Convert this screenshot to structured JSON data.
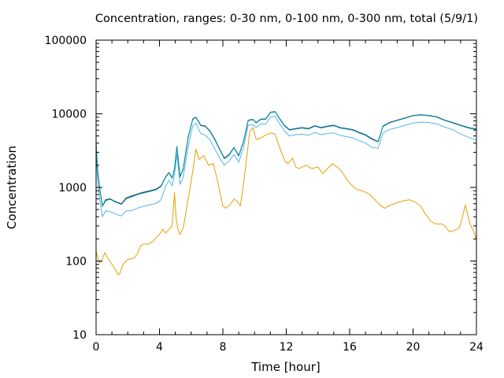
{
  "chart_data": {
    "type": "line",
    "title": "Concentration, ranges: 0-30 nm, 0-100 nm, 0-300 nm, total (5/9/1)",
    "xlabel": "Time [hour]",
    "ylabel": "Concentration",
    "xlim": [
      0,
      24
    ],
    "ylim": [
      10,
      100000
    ],
    "yscale": "log",
    "grid": false,
    "legend": "none",
    "x_ticks": [
      "0",
      "4",
      "8",
      "12",
      "16",
      "20",
      "24"
    ],
    "y_ticks": [
      "10",
      "100",
      "1000",
      "10000",
      "100000"
    ],
    "series": [
      {
        "color": "#e69f00",
        "x": [
          0,
          0.2,
          0.35,
          0.55,
          0.8,
          1.0,
          1.2,
          1.4,
          1.5,
          1.7,
          2.0,
          2.4,
          2.6,
          2.8,
          3.0,
          3.3,
          3.6,
          3.8,
          4.0,
          4.2,
          4.4,
          4.6,
          4.8,
          4.95,
          5.05,
          5.15,
          5.3,
          5.5,
          5.7,
          6.0,
          6.3,
          6.5,
          6.8,
          7.1,
          7.4,
          7.6,
          7.8,
          8.0,
          8.2,
          8.5,
          8.7,
          8.9,
          9.1,
          9.3,
          9.5,
          9.7,
          9.9,
          10.1,
          10.3,
          10.6,
          11.0,
          11.3,
          11.6,
          11.9,
          12.1,
          12.4,
          12.6,
          12.8,
          13.0,
          13.3,
          13.6,
          14.0,
          14.3,
          14.6,
          14.9,
          15.2,
          15.5,
          15.8,
          16.0,
          16.4,
          16.8,
          17.2,
          17.6,
          17.9,
          18.2,
          18.6,
          19.0,
          19.4,
          19.8,
          20.2,
          20.5,
          20.8,
          21.1,
          21.4,
          21.8,
          22.0,
          22.3,
          22.6,
          22.9,
          23.1,
          23.3,
          23.6,
          23.9,
          24.0
        ],
        "values": [
          135,
          95,
          100,
          130,
          105,
          90,
          78,
          65,
          68,
          90,
          105,
          110,
          125,
          160,
          170,
          170,
          185,
          210,
          230,
          270,
          240,
          270,
          300,
          850,
          380,
          280,
          230,
          280,
          500,
          1200,
          3300,
          2400,
          2700,
          2000,
          2100,
          1400,
          900,
          560,
          520,
          600,
          700,
          650,
          560,
          1100,
          2500,
          5800,
          6500,
          4500,
          4600,
          5000,
          5500,
          5300,
          3400,
          2300,
          2100,
          2500,
          1900,
          1800,
          1900,
          2000,
          1800,
          1900,
          1550,
          1800,
          2100,
          1900,
          1650,
          1300,
          1150,
          950,
          900,
          820,
          680,
          580,
          520,
          580,
          620,
          660,
          680,
          620,
          550,
          430,
          350,
          320,
          320,
          300,
          250,
          260,
          280,
          380,
          580,
          320,
          230,
          190
        ]
      },
      {
        "color": "#56b4e9",
        "x": [
          0,
          0.1,
          0.25,
          0.4,
          0.6,
          0.9,
          1.1,
          1.4,
          1.6,
          1.9,
          2.2,
          2.5,
          2.8,
          3.1,
          3.4,
          3.8,
          4.1,
          4.4,
          4.6,
          4.8,
          4.95,
          5.1,
          5.3,
          5.5,
          5.8,
          6.1,
          6.3,
          6.6,
          6.9,
          7.2,
          7.5,
          7.8,
          8.1,
          8.4,
          8.7,
          9.0,
          9.3,
          9.6,
          9.9,
          10.1,
          10.4,
          10.7,
          11.0,
          11.3,
          11.6,
          11.9,
          12.2,
          12.6,
          13.0,
          13.4,
          13.8,
          14.2,
          14.6,
          15.0,
          15.4,
          15.8,
          16.2,
          16.6,
          17.0,
          17.4,
          17.8,
          18.1,
          18.5,
          19.0,
          19.5,
          20.0,
          20.5,
          21.0,
          21.5,
          22.0,
          22.5,
          23.0,
          23.5,
          24.0
        ],
        "values": [
          3000,
          1200,
          650,
          400,
          480,
          470,
          450,
          420,
          410,
          480,
          480,
          510,
          540,
          560,
          580,
          610,
          680,
          1050,
          1250,
          1050,
          1500,
          2800,
          1100,
          1400,
          3500,
          6800,
          7500,
          5400,
          5100,
          4400,
          3300,
          2500,
          2000,
          2300,
          2800,
          2200,
          3500,
          7000,
          7100,
          6500,
          7300,
          7200,
          9000,
          9200,
          7200,
          5800,
          5000,
          5200,
          5300,
          5100,
          5600,
          5200,
          5400,
          5500,
          5100,
          4900,
          4700,
          4300,
          4000,
          3500,
          3400,
          5500,
          6100,
          6500,
          7000,
          7500,
          7700,
          7600,
          7300,
          6600,
          6100,
          5300,
          4800,
          4400
        ]
      },
      {
        "color": "#1c2f6b",
        "x": [
          0,
          0.1,
          0.25,
          0.4,
          0.6,
          0.9,
          1.1,
          1.4,
          1.6,
          1.9,
          2.2,
          2.5,
          2.8,
          3.1,
          3.4,
          3.8,
          4.1,
          4.4,
          4.6,
          4.8,
          4.95,
          5.1,
          5.3,
          5.5,
          5.8,
          6.1,
          6.3,
          6.6,
          6.9,
          7.2,
          7.5,
          7.8,
          8.1,
          8.4,
          8.7,
          9.0,
          9.3,
          9.6,
          9.9,
          10.1,
          10.4,
          10.7,
          11.0,
          11.3,
          11.6,
          11.9,
          12.2,
          12.6,
          13.0,
          13.4,
          13.8,
          14.2,
          14.6,
          15.0,
          15.4,
          15.8,
          16.2,
          16.6,
          17.0,
          17.4,
          17.8,
          18.1,
          18.5,
          19.0,
          19.5,
          20.0,
          20.5,
          21.0,
          21.5,
          22.0,
          22.5,
          23.0,
          23.5,
          24.0
        ],
        "values": [
          4000,
          1700,
          900,
          560,
          680,
          700,
          660,
          620,
          600,
          720,
          760,
          800,
          840,
          870,
          900,
          950,
          1050,
          1400,
          1600,
          1350,
          1800,
          3600,
          1400,
          1800,
          4700,
          8500,
          9000,
          7000,
          6800,
          5800,
          4500,
          3300,
          2500,
          2800,
          3500,
          2700,
          4200,
          8200,
          8400,
          7600,
          8500,
          8500,
          10500,
          10700,
          8500,
          6900,
          6100,
          6300,
          6500,
          6300,
          6900,
          6500,
          6800,
          7000,
          6500,
          6300,
          6100,
          5600,
          5200,
          4600,
          4200,
          6800,
          7600,
          8200,
          8800,
          9500,
          9700,
          9500,
          9100,
          8200,
          7600,
          7000,
          6500,
          6200
        ]
      },
      {
        "color": "#009e9e",
        "x": [
          0,
          0.1,
          0.25,
          0.4,
          0.6,
          0.9,
          1.1,
          1.4,
          1.6,
          1.9,
          2.2,
          2.5,
          2.8,
          3.1,
          3.4,
          3.8,
          4.1,
          4.4,
          4.6,
          4.8,
          4.95,
          5.1,
          5.3,
          5.5,
          5.8,
          6.1,
          6.3,
          6.6,
          6.9,
          7.2,
          7.5,
          7.8,
          8.1,
          8.4,
          8.7,
          9.0,
          9.3,
          9.6,
          9.9,
          10.1,
          10.4,
          10.7,
          11.0,
          11.3,
          11.6,
          11.9,
          12.2,
          12.6,
          13.0,
          13.4,
          13.8,
          14.2,
          14.6,
          15.0,
          15.4,
          15.8,
          16.2,
          16.6,
          17.0,
          17.4,
          17.8,
          18.1,
          18.5,
          19.0,
          19.5,
          20.0,
          20.5,
          21.0,
          21.5,
          22.0,
          22.5,
          23.0,
          23.5,
          24.0
        ],
        "values": [
          3900,
          1650,
          880,
          550,
          660,
          690,
          650,
          610,
          590,
          700,
          740,
          780,
          820,
          850,
          880,
          930,
          1030,
          1380,
          1580,
          1330,
          1780,
          3550,
          1380,
          1770,
          4600,
          8400,
          8900,
          6900,
          6700,
          5700,
          4400,
          3250,
          2450,
          2750,
          3450,
          2650,
          4150,
          8100,
          8300,
          7500,
          8400,
          8400,
          10400,
          10600,
          8400,
          6800,
          6000,
          6200,
          6400,
          6200,
          6800,
          6400,
          6700,
          6900,
          6400,
          6200,
          6000,
          5500,
          5100,
          4500,
          4150,
          6700,
          7500,
          8100,
          8700,
          9400,
          9600,
          9400,
          9000,
          8100,
          7500,
          6900,
          6400,
          6100
        ]
      }
    ]
  }
}
